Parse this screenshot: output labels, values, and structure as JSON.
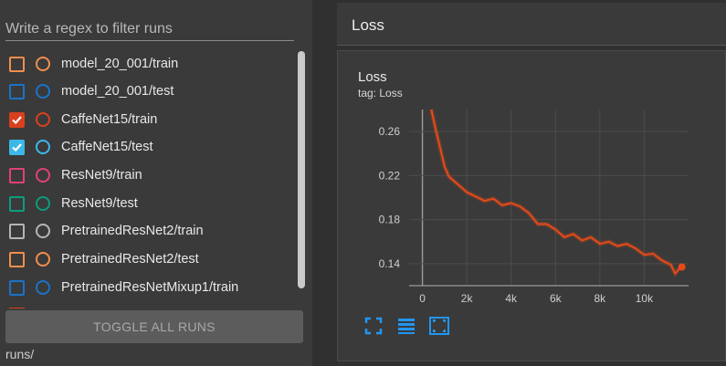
{
  "filter": {
    "placeholder": "Write a regex to filter runs",
    "value": ""
  },
  "runs": [
    {
      "name": "model_20_001/train",
      "color": "#f28e4c",
      "checked": false
    },
    {
      "name": "model_20_001/test",
      "color": "#1a73c9",
      "checked": false
    },
    {
      "name": "CaffeNet15/train",
      "color": "#d9411e",
      "checked": true
    },
    {
      "name": "CaffeNet15/test",
      "color": "#3cb8e8",
      "checked": true
    },
    {
      "name": "ResNet9/train",
      "color": "#e0417a",
      "checked": false
    },
    {
      "name": "ResNet9/test",
      "color": "#0f9b7e",
      "checked": false
    },
    {
      "name": "PretrainedResNet2/train",
      "color": "#b5b5b5",
      "checked": false
    },
    {
      "name": "PretrainedResNet2/test",
      "color": "#f28e4c",
      "checked": false
    },
    {
      "name": "PretrainedResNetMixup1/train",
      "color": "#1a73c9",
      "checked": false
    }
  ],
  "toggle_label": "TOGGLE ALL RUNS",
  "logdir": "runs/",
  "header_title": "Loss",
  "card": {
    "title": "Loss",
    "tag": "tag: Loss"
  },
  "icons": [
    "fullscreen-icon",
    "data-table-icon",
    "fit-domain-icon"
  ],
  "accent": "#2196f3",
  "chart_data": {
    "type": "line",
    "title": "",
    "xlabel": "",
    "ylabel": "",
    "xlim": [
      -600,
      12000
    ],
    "ylim": [
      0.12,
      0.28
    ],
    "xticks": [
      0,
      2000,
      4000,
      6000,
      8000,
      10000
    ],
    "xtick_labels": [
      "0",
      "2k",
      "4k",
      "6k",
      "8k",
      "10k"
    ],
    "yticks": [
      0.14,
      0.18,
      0.22,
      0.26
    ],
    "ytick_labels": [
      "0.14",
      "0.18",
      "0.22",
      "0.26"
    ],
    "grid": true,
    "series": [
      {
        "color": "#e64a19",
        "x": [
          400,
          600,
          800,
          1000,
          1200,
          1600,
          2000,
          2400,
          2800,
          3200,
          3600,
          4000,
          4400,
          4800,
          5200,
          5600,
          6000,
          6400,
          6800,
          7200,
          7600,
          8000,
          8400,
          8800,
          9200,
          9600,
          10000,
          10400,
          10800,
          11200,
          11400,
          11600,
          11700
        ],
        "y": [
          0.28,
          0.262,
          0.245,
          0.228,
          0.219,
          0.212,
          0.205,
          0.201,
          0.197,
          0.199,
          0.193,
          0.195,
          0.192,
          0.186,
          0.176,
          0.176,
          0.171,
          0.164,
          0.167,
          0.161,
          0.164,
          0.158,
          0.16,
          0.156,
          0.158,
          0.154,
          0.148,
          0.149,
          0.143,
          0.139,
          0.131,
          0.136,
          0.137
        ]
      }
    ]
  }
}
